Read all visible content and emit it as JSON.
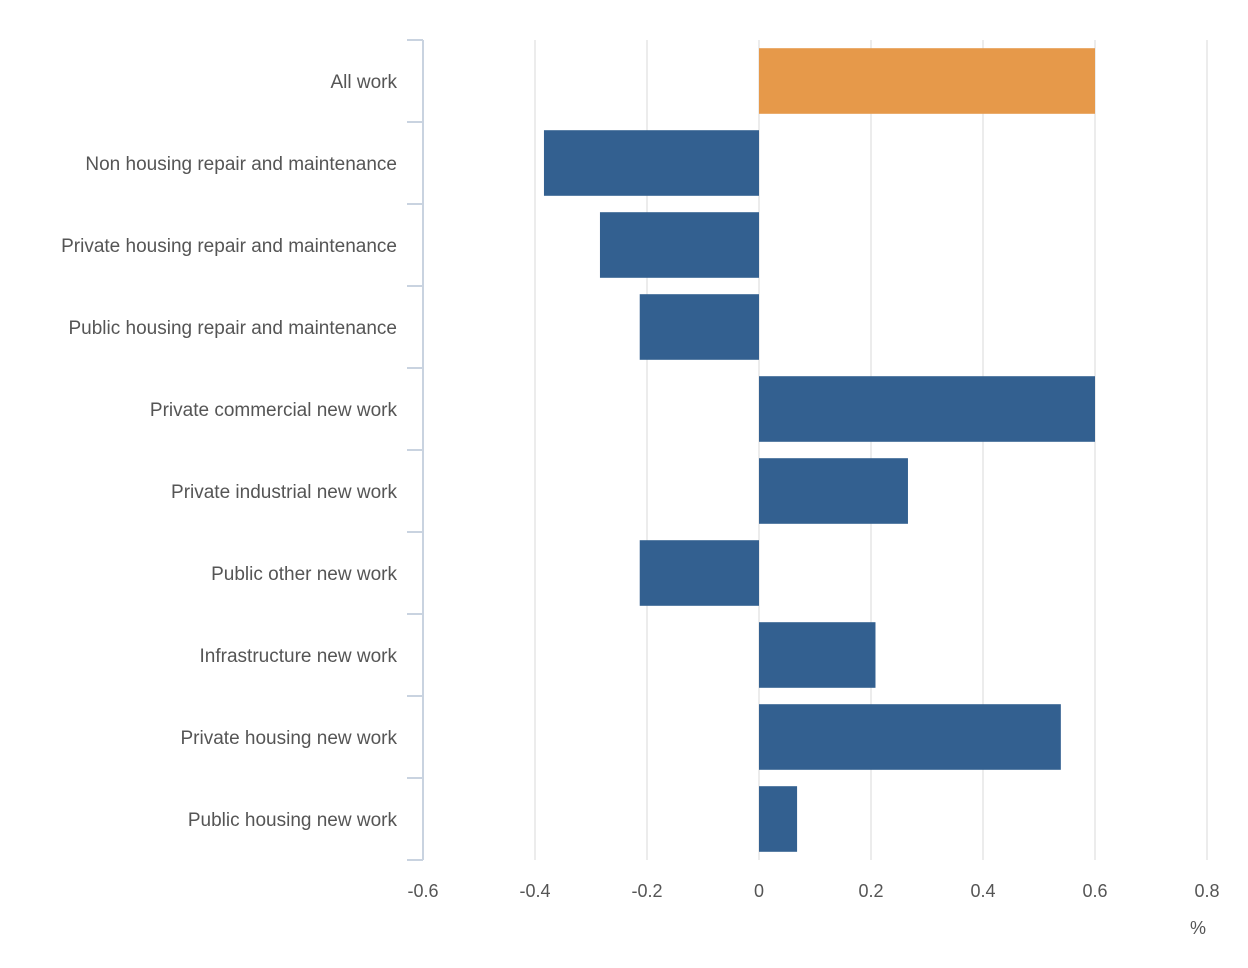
{
  "chart_data": {
    "type": "bar",
    "orientation": "horizontal",
    "categories": [
      "All work",
      "Non housing repair and maintenance",
      "Private housing repair and maintenance",
      "Public housing repair and maintenance",
      "Private commercial new work",
      "Private industrial new work",
      "Public other new work",
      "Infrastructure new work",
      "Private housing new work",
      "Public housing new work"
    ],
    "values": [
      0.6,
      -0.384,
      -0.284,
      -0.213,
      0.6,
      0.266,
      -0.213,
      0.208,
      0.539,
      0.068
    ],
    "highlight_index": 0,
    "xlim": [
      -0.6,
      0.8
    ],
    "xticks": [
      -0.6,
      -0.4,
      -0.2,
      0,
      0.2,
      0.4,
      0.6,
      0.8
    ],
    "xtick_labels": [
      "-0.6",
      "-0.4",
      "-0.2",
      "0",
      "0.2",
      "0.4",
      "0.6",
      "0.8"
    ],
    "xunit": "%",
    "grid": true,
    "colors": {
      "bar": "#336090",
      "highlight": "#e6994a",
      "grid": "#e0e0e0",
      "axis": "#c9d3e0",
      "text": "#555555"
    }
  }
}
